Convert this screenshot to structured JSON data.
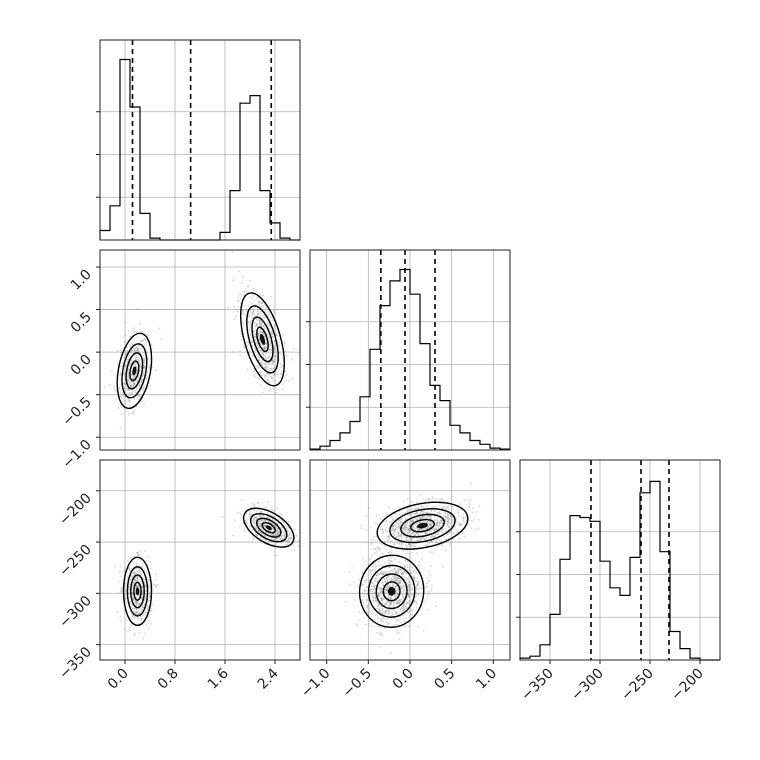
{
  "chart_data": {
    "type": "corner",
    "parameters": 3,
    "grid": true,
    "panels": [
      {
        "id": "hist-0",
        "type": "histogram",
        "row": 0,
        "col": 0,
        "xlim": [
          -0.4,
          2.8
        ],
        "bins": [
          -0.4,
          -0.24,
          -0.08,
          0.08,
          0.24,
          0.4,
          0.56,
          0.72,
          0.88,
          1.04,
          1.2,
          1.36,
          1.52,
          1.68,
          1.84,
          2.0,
          2.16,
          2.32,
          2.48,
          2.64,
          2.8
        ],
        "counts": [
          0.05,
          0.18,
          0.95,
          0.7,
          0.14,
          0.01,
          0,
          0,
          0,
          0,
          0,
          0,
          0.04,
          0.26,
          0.72,
          0.76,
          0.26,
          0.09,
          0.01,
          0
        ],
        "ylim": [
          0,
          1.0
        ],
        "quantiles": [
          0.12,
          1.05,
          2.34
        ]
      },
      {
        "id": "hist-1",
        "type": "histogram",
        "row": 1,
        "col": 1,
        "xlim": [
          -1.2,
          1.2
        ],
        "bins": [
          -1.2,
          -1.08,
          -0.96,
          -0.84,
          -0.72,
          -0.6,
          -0.48,
          -0.36,
          -0.24,
          -0.12,
          0.0,
          0.12,
          0.24,
          0.36,
          0.48,
          0.6,
          0.72,
          0.84,
          0.96,
          1.08,
          1.2
        ],
        "counts": [
          0.005,
          0.02,
          0.05,
          0.09,
          0.15,
          0.28,
          0.53,
          0.76,
          0.89,
          0.95,
          0.82,
          0.56,
          0.34,
          0.26,
          0.13,
          0.09,
          0.05,
          0.03,
          0.01,
          0.005
        ],
        "ylim": [
          0,
          1.0
        ],
        "quantiles": [
          -0.35,
          -0.06,
          0.3
        ]
      },
      {
        "id": "hist-2",
        "type": "histogram",
        "row": 2,
        "col": 2,
        "xlim": [
          -380,
          -180
        ],
        "bins": [
          -380,
          -370,
          -360,
          -350,
          -340,
          -330,
          -320,
          -310,
          -300,
          -290,
          -280,
          -270,
          -260,
          -250,
          -240,
          -230,
          -220,
          -210,
          -200,
          -190,
          -180
        ],
        "counts": [
          0.01,
          0.02,
          0.08,
          0.24,
          0.53,
          0.76,
          0.75,
          0.73,
          0.52,
          0.38,
          0.34,
          0.54,
          0.88,
          0.94,
          0.57,
          0.15,
          0.06,
          0.01,
          0,
          0
        ],
        "ylim": [
          0,
          1.0
        ],
        "quantiles": [
          -309,
          -259,
          -231
        ]
      },
      {
        "id": "scatter-1-0",
        "type": "2d-density",
        "row": 1,
        "col": 0,
        "xlim": [
          -0.4,
          2.8
        ],
        "ylim": [
          -1.15,
          1.2
        ],
        "modes": [
          {
            "x": 0.15,
            "y": -0.22
          },
          {
            "x": 2.2,
            "y": 0.15
          }
        ]
      },
      {
        "id": "scatter-2-0",
        "type": "2d-density",
        "row": 2,
        "col": 0,
        "xlim": [
          -0.4,
          2.8
        ],
        "ylim": [
          -365,
          -170
        ],
        "modes": [
          {
            "x": 0.2,
            "y": -298
          },
          {
            "x": 2.3,
            "y": -236
          }
        ]
      },
      {
        "id": "scatter-2-1",
        "type": "2d-density",
        "row": 2,
        "col": 1,
        "xlim": [
          -1.2,
          1.2
        ],
        "ylim": [
          -365,
          -170
        ],
        "modes": [
          {
            "x": -0.22,
            "y": -298
          },
          {
            "x": 0.15,
            "y": -234
          }
        ]
      }
    ],
    "axes": {
      "col0_xticks": [
        "0.0",
        "0.8",
        "1.6",
        "2.4"
      ],
      "col1_xticks": [
        "−1.0",
        "−0.5",
        "0.0",
        "0.5",
        "1.0"
      ],
      "col2_xticks": [
        "−350",
        "−300",
        "−250",
        "−200"
      ],
      "row1_yticks": [
        "1.0",
        "0.5",
        "0.0",
        "−0.5",
        "−1.0"
      ],
      "row2_yticks": [
        "−200",
        "−250",
        "−300",
        "−350"
      ]
    }
  }
}
